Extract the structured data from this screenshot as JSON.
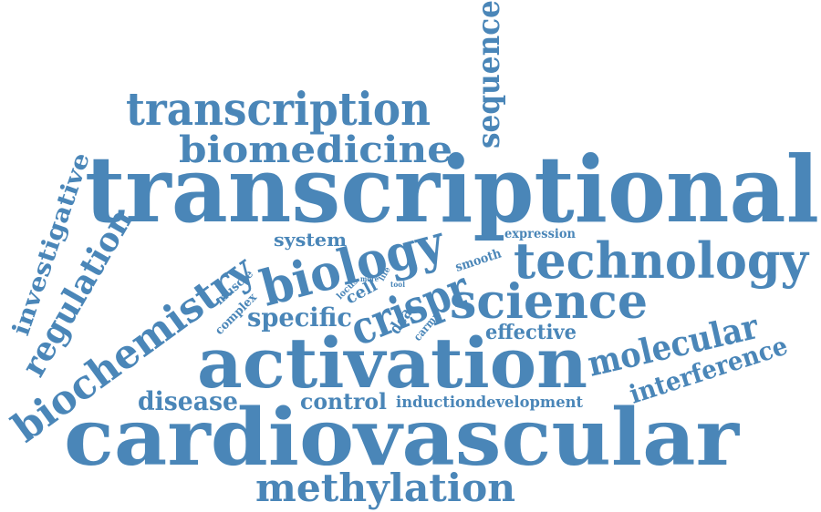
{
  "word_color": "#4a86b8",
  "background_color": "#ffffff",
  "words": [
    {
      "text": "transcriptional"
    },
    {
      "text": "cardiovascular"
    },
    {
      "text": "activation"
    },
    {
      "text": "transcription"
    },
    {
      "text": "biomedicine"
    },
    {
      "text": "sequence"
    },
    {
      "text": "technology"
    },
    {
      "text": "science"
    },
    {
      "text": "methylation"
    },
    {
      "text": "biology"
    },
    {
      "text": "crispr"
    },
    {
      "text": "biochemistry"
    },
    {
      "text": "regulation"
    },
    {
      "text": "investigative"
    },
    {
      "text": "molecular"
    },
    {
      "text": "interference"
    },
    {
      "text": "specific"
    },
    {
      "text": "disease"
    },
    {
      "text": "control"
    },
    {
      "text": "inductiondevelopment"
    },
    {
      "text": "effective"
    },
    {
      "text": "system"
    },
    {
      "text": "expression"
    },
    {
      "text": "smooth"
    },
    {
      "text": "cell"
    },
    {
      "text": "dca"
    },
    {
      "text": "carmn"
    },
    {
      "text": "muscle"
    },
    {
      "text": "complex"
    },
    {
      "text": "locus"
    },
    {
      "text": "more"
    },
    {
      "text": "life"
    },
    {
      "text": "tool"
    }
  ]
}
